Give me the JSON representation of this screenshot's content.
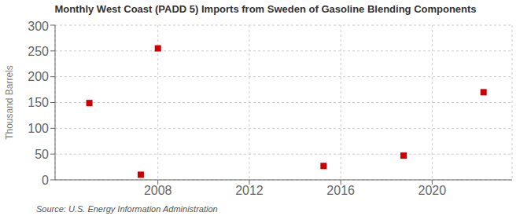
{
  "chart_data": {
    "type": "scatter",
    "title": "Monthly West Coast (PADD 5) Imports from Sweden of Gasoline Blending Components",
    "ylabel": "Thousand Barrels",
    "source": "Source: U.S. Energy Information Administration",
    "x": [
      2005.0,
      2007.25,
      2008.0,
      2015.25,
      2018.75,
      2022.25
    ],
    "values": [
      149,
      10,
      255,
      27,
      47,
      170
    ],
    "color": "#cc0000",
    "marker": "square",
    "xlim": [
      2003.5,
      2023.5
    ],
    "ylim": [
      0,
      300
    ],
    "xticks": [
      2008,
      2012,
      2016,
      2020
    ],
    "yticks": [
      0,
      50,
      100,
      150,
      200,
      250,
      300
    ],
    "grid": true
  }
}
